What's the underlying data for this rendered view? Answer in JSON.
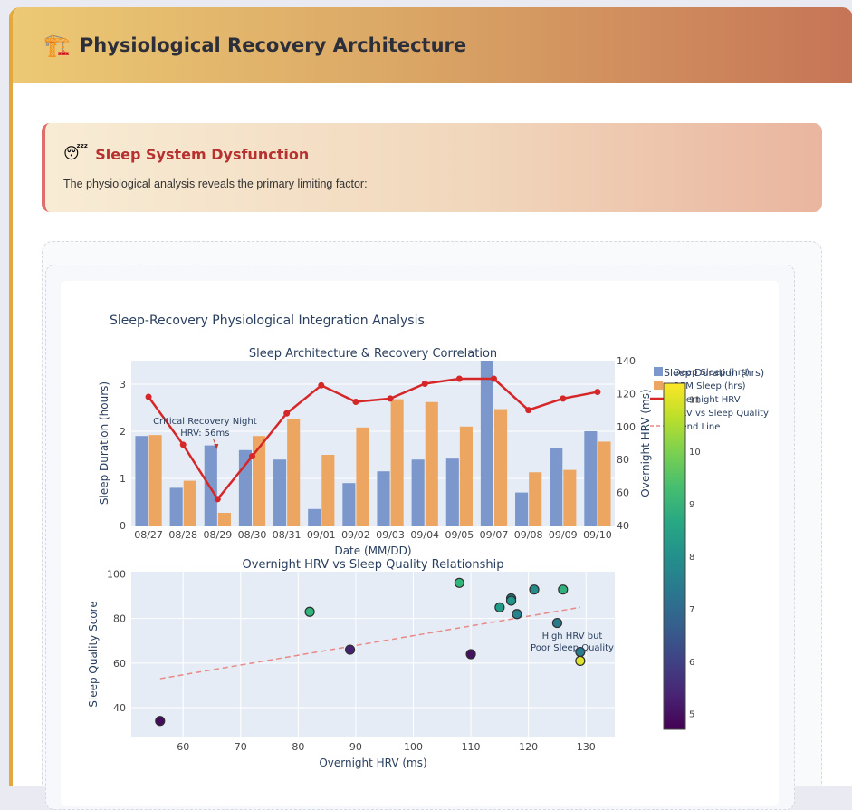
{
  "header": {
    "icon": "🏗️",
    "title": "Physiological Recovery Architecture"
  },
  "alert": {
    "icon": "😴",
    "title": "Sleep System Dysfunction",
    "text": "The physiological analysis reveals the primary limiting factor:"
  },
  "chart_data": {
    "title": "Sleep-Recovery Physiological Integration Analysis",
    "top": {
      "type": "bar",
      "title": "Sleep Architecture & Recovery Correlation",
      "xlabel": "Date (MM/DD)",
      "ylabel": "Sleep Duration (hours)",
      "y2label": "Overnight HRV (ms)",
      "categories": [
        "08/27",
        "08/28",
        "08/29",
        "08/30",
        "08/31",
        "09/01",
        "09/02",
        "09/03",
        "09/04",
        "09/05",
        "09/07",
        "09/08",
        "09/09",
        "09/10"
      ],
      "ylim": [
        0,
        3.5
      ],
      "y2lim": [
        40,
        140
      ],
      "yticks": [
        0,
        1,
        2,
        3
      ],
      "y2ticks": [
        40,
        60,
        80,
        100,
        120,
        140
      ],
      "series": [
        {
          "name": "Deep Sleep (hrs)",
          "type": "bar",
          "color": "#7b97cc",
          "values": [
            1.9,
            0.8,
            1.7,
            1.6,
            1.4,
            0.35,
            0.9,
            1.15,
            1.4,
            1.42,
            3.5,
            0.7,
            1.65,
            2.0
          ]
        },
        {
          "name": "REM Sleep (hrs)",
          "type": "bar",
          "color": "#eda662",
          "values": [
            1.92,
            0.95,
            0.27,
            1.9,
            2.25,
            1.5,
            2.08,
            2.68,
            2.62,
            2.1,
            2.47,
            1.13,
            1.18,
            1.78
          ]
        },
        {
          "name": "Overnight HRV",
          "type": "line",
          "axis": "y2",
          "color": "#d62728",
          "values": [
            118,
            89,
            56,
            82,
            108,
            125,
            115,
            117,
            126,
            129,
            129,
            110,
            117,
            121
          ]
        }
      ],
      "annotation": {
        "text_line1": "Critical Recovery Night",
        "text_line2": "HRV: 56ms",
        "category": "08/29"
      }
    },
    "bottom": {
      "type": "scatter",
      "title": "Overnight HRV vs Sleep Quality Relationship",
      "xlabel": "Overnight HRV (ms)",
      "ylabel": "Sleep Quality Score",
      "xlim": [
        51,
        135
      ],
      "ylim": [
        27,
        101
      ],
      "xticks": [
        60,
        70,
        80,
        90,
        100,
        110,
        120,
        130
      ],
      "yticks": [
        40,
        60,
        80,
        100
      ],
      "points": [
        {
          "x": 56,
          "y": 34,
          "c": 4.9
        },
        {
          "x": 82,
          "y": 83,
          "c": 9.0
        },
        {
          "x": 89,
          "y": 66,
          "c": 5.3
        },
        {
          "x": 108,
          "y": 96,
          "c": 9.0
        },
        {
          "x": 110,
          "y": 64,
          "c": 5.0
        },
        {
          "x": 115,
          "y": 85,
          "c": 8.3
        },
        {
          "x": 117,
          "y": 89,
          "c": 7.6
        },
        {
          "x": 117,
          "y": 88,
          "c": 8.1
        },
        {
          "x": 118,
          "y": 82,
          "c": 7.6
        },
        {
          "x": 121,
          "y": 93,
          "c": 7.9
        },
        {
          "x": 125,
          "y": 78,
          "c": 7.4
        },
        {
          "x": 126,
          "y": 93,
          "c": 8.9
        },
        {
          "x": 129,
          "y": 65,
          "c": 7.5
        },
        {
          "x": 129,
          "y": 61,
          "c": 11.0
        }
      ],
      "trend": {
        "x": [
          56,
          129
        ],
        "y": [
          53,
          85
        ],
        "color": "#e88a86"
      },
      "annotation": {
        "text_line1": "High HRV but",
        "text_line2": "Poor Sleep Quality"
      }
    },
    "legend": [
      "Deep Sleep (hrs)",
      "REM Sleep (hrs)",
      "Overnight HRV",
      "HRV vs Sleep Quality",
      "Trend Line"
    ],
    "colorbar": {
      "title": "Sleep Duration (hrs)",
      "min": 4.7,
      "max": 11.3,
      "ticks": [
        5,
        6,
        7,
        8,
        9,
        10,
        11
      ]
    }
  }
}
